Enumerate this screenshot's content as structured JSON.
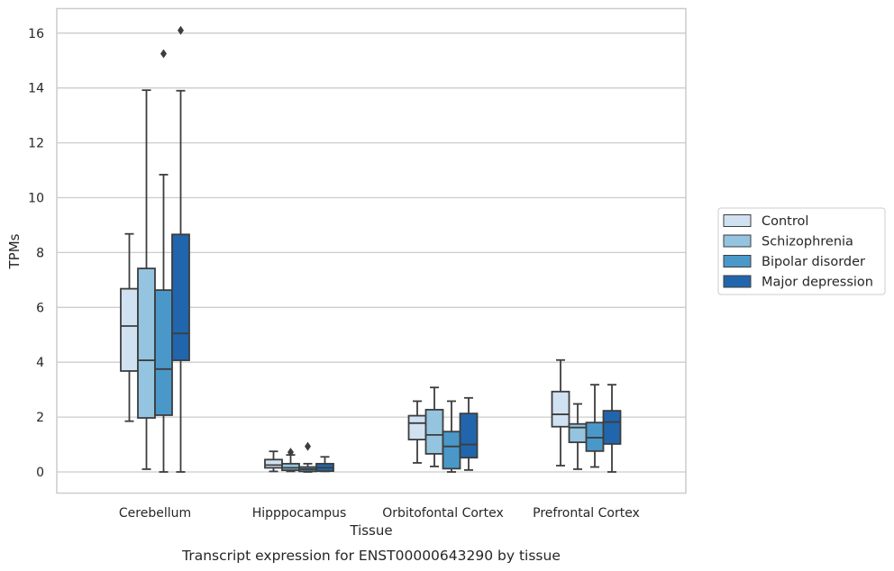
{
  "chart_data": {
    "type": "boxplot",
    "title": "Transcript expression for ENST00000643290 by tissue",
    "xlabel": "Tissue",
    "ylabel": "TPMs",
    "ylim": [
      -0.8,
      16.9
    ],
    "yticks": [
      0,
      2,
      4,
      6,
      8,
      10,
      12,
      14,
      16
    ],
    "grid": "horizontal",
    "legend_position": "right",
    "categories": [
      "Cerebellum",
      "Hipppocampus",
      "Orbitofontal Cortex",
      "Prefrontal Cortex"
    ],
    "series": [
      {
        "name": "Control",
        "color": "#d0e1f2",
        "boxes": [
          {
            "min": 1.85,
            "q1": 3.68,
            "median": 5.32,
            "q3": 6.68,
            "max": 8.68,
            "outliers": []
          },
          {
            "min": 0.02,
            "q1": 0.15,
            "median": 0.25,
            "q3": 0.45,
            "max": 0.75,
            "outliers": []
          },
          {
            "min": 0.33,
            "q1": 1.18,
            "median": 1.78,
            "q3": 2.05,
            "max": 2.58,
            "outliers": []
          },
          {
            "min": 0.23,
            "q1": 1.65,
            "median": 2.1,
            "q3": 2.93,
            "max": 4.08,
            "outliers": []
          }
        ]
      },
      {
        "name": "Schizophrenia",
        "color": "#94c4df",
        "boxes": [
          {
            "min": 0.1,
            "q1": 1.97,
            "median": 4.07,
            "q3": 7.42,
            "max": 13.92,
            "outliers": []
          },
          {
            "min": 0.02,
            "q1": 0.06,
            "median": 0.15,
            "q3": 0.3,
            "max": 0.62,
            "outliers": [
              0.72
            ]
          },
          {
            "min": 0.2,
            "q1": 0.66,
            "median": 1.35,
            "q3": 2.27,
            "max": 3.08,
            "outliers": []
          },
          {
            "min": 0.1,
            "q1": 1.08,
            "median": 1.62,
            "q3": 1.75,
            "max": 2.48,
            "outliers": []
          }
        ]
      },
      {
        "name": "Bipolar disorder",
        "color": "#4a98c9",
        "boxes": [
          {
            "min": 0.0,
            "q1": 2.07,
            "median": 3.75,
            "q3": 6.63,
            "max": 10.84,
            "outliers": [
              15.25
            ]
          },
          {
            "min": 0.0,
            "q1": 0.02,
            "median": 0.1,
            "q3": 0.18,
            "max": 0.3,
            "outliers": [
              0.93
            ]
          },
          {
            "min": 0.0,
            "q1": 0.12,
            "median": 0.93,
            "q3": 1.47,
            "max": 2.58,
            "outliers": []
          },
          {
            "min": 0.18,
            "q1": 0.76,
            "median": 1.25,
            "q3": 1.8,
            "max": 3.18,
            "outliers": []
          }
        ]
      },
      {
        "name": "Major depression",
        "color": "#2166ac",
        "boxes": [
          {
            "min": 0.0,
            "q1": 4.07,
            "median": 5.05,
            "q3": 8.66,
            "max": 13.9,
            "outliers": [
              16.1
            ]
          },
          {
            "min": 0.02,
            "q1": 0.03,
            "median": 0.15,
            "q3": 0.3,
            "max": 0.55,
            "outliers": []
          },
          {
            "min": 0.07,
            "q1": 0.52,
            "median": 1.0,
            "q3": 2.13,
            "max": 2.7,
            "outliers": []
          },
          {
            "min": 0.0,
            "q1": 1.02,
            "median": 1.82,
            "q3": 2.23,
            "max": 3.18,
            "outliers": []
          }
        ]
      }
    ]
  }
}
